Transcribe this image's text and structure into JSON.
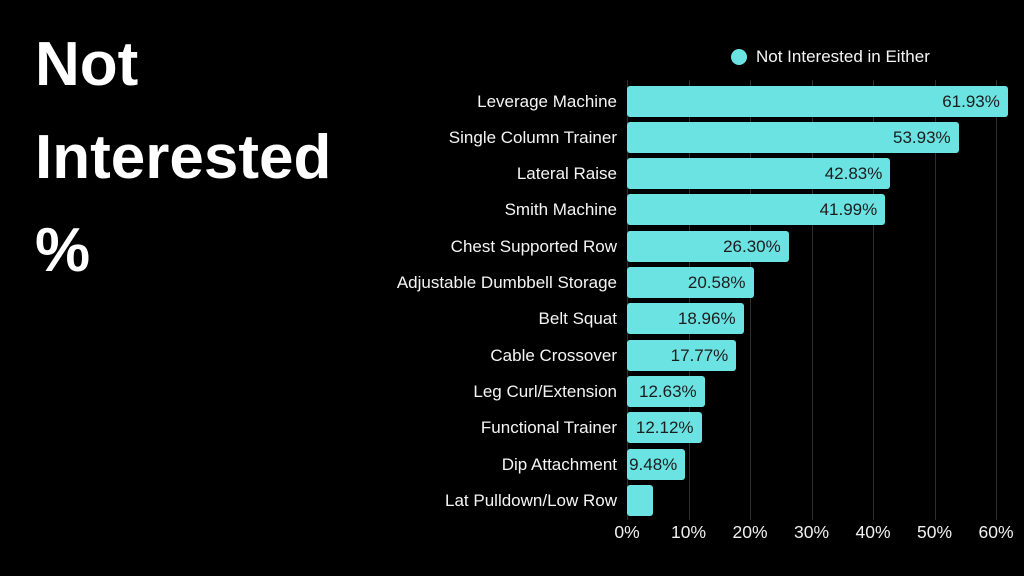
{
  "page": {
    "background_color": "#000000"
  },
  "title": {
    "lines": [
      "Not",
      "Interested",
      "%"
    ]
  },
  "legend": {
    "label": "Not Interested in Either",
    "marker_color": "#6ce3e3"
  },
  "chart_data": {
    "type": "bar",
    "orientation": "horizontal",
    "title": "Not Interested %",
    "series_name": "Not Interested in Either",
    "categories": [
      "Leverage Machine",
      "Single Column Trainer",
      "Lateral Raise",
      "Smith Machine",
      "Chest Supported Row",
      "Adjustable Dumbbell Storage",
      "Belt Squat",
      "Cable Crossover",
      "Leg Curl/Extension",
      "Functional Trainer",
      "Dip Attachment",
      "Lat Pulldown/Low Row"
    ],
    "values": [
      61.93,
      53.93,
      42.83,
      41.99,
      26.3,
      20.58,
      18.96,
      17.77,
      12.63,
      12.12,
      9.48,
      4.2
    ],
    "value_labels": [
      "61.93%",
      "53.93%",
      "42.83%",
      "41.99%",
      "26.30%",
      "20.58%",
      "18.96%",
      "17.77%",
      "12.63%",
      "12.12%",
      "9.48%",
      ""
    ],
    "x_ticks": [
      0,
      10,
      20,
      30,
      40,
      50,
      60
    ],
    "x_tick_labels": [
      "0%",
      "10%",
      "20%",
      "30%",
      "40%",
      "50%",
      "60%"
    ],
    "xlim": [
      0,
      63.5
    ],
    "grid": true,
    "gridline_color": "#2e2e2e",
    "bar_color": "#6ce3e3",
    "value_label_color": "#1c1c1c",
    "category_label_color": "#f5f5f5",
    "legend_position": "top-right"
  }
}
